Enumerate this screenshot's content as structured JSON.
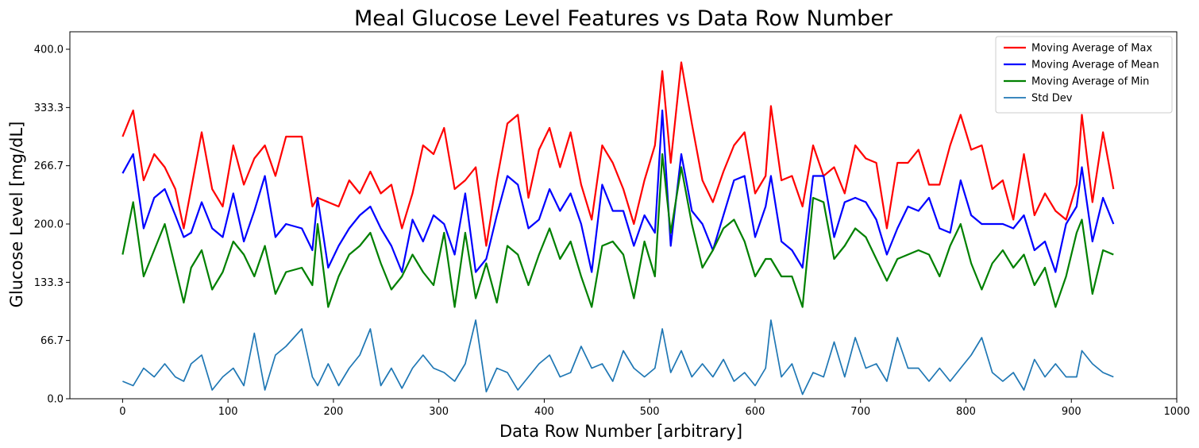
{
  "chart_data": {
    "type": "line",
    "title": "Meal Glucose Level Features vs Data Row Number",
    "xlabel": "Data Row Number [arbitrary]",
    "ylabel": "Glucose Level [mg/dL]",
    "xlim": [
      -50,
      1000
    ],
    "ylim": [
      0,
      420
    ],
    "xticks": [
      0,
      100,
      200,
      300,
      400,
      500,
      600,
      700,
      800,
      900,
      1000
    ],
    "xtick_labels": [
      "0",
      "100",
      "200",
      "300",
      "400",
      "500",
      "600",
      "700",
      "800",
      "900",
      "1000"
    ],
    "yticks": [
      0,
      66.7,
      133.3,
      200,
      266.7,
      333.3,
      400
    ],
    "ytick_labels": [
      "0.0",
      "66.7",
      "133.3",
      "200.0",
      "266.7",
      "333.3",
      "400.0"
    ],
    "grid": false,
    "legend_position": "top-right",
    "series": [
      {
        "name": "Moving Average of Max",
        "color": "#ff0000",
        "line_width": 2.2,
        "x": [
          0,
          10,
          20,
          30,
          40,
          50,
          58,
          65,
          75,
          85,
          95,
          105,
          115,
          125,
          135,
          145,
          155,
          170,
          180,
          185,
          195,
          205,
          215,
          225,
          235,
          245,
          255,
          265,
          275,
          285,
          295,
          305,
          315,
          325,
          335,
          345,
          355,
          365,
          375,
          385,
          395,
          405,
          415,
          425,
          435,
          445,
          455,
          465,
          475,
          485,
          495,
          505,
          512,
          520,
          530,
          540,
          550,
          560,
          570,
          580,
          590,
          600,
          610,
          615,
          625,
          635,
          645,
          655,
          665,
          675,
          685,
          695,
          705,
          715,
          725,
          735,
          745,
          755,
          765,
          775,
          785,
          795,
          805,
          815,
          825,
          835,
          845,
          855,
          865,
          875,
          885,
          895,
          905,
          910,
          920,
          930,
          940
        ],
        "values": [
          300,
          330,
          250,
          280,
          265,
          240,
          195,
          240,
          305,
          240,
          220,
          290,
          245,
          275,
          290,
          255,
          300,
          300,
          220,
          230,
          225,
          220,
          250,
          235,
          260,
          235,
          245,
          195,
          235,
          290,
          280,
          310,
          240,
          250,
          265,
          175,
          250,
          315,
          325,
          230,
          285,
          310,
          265,
          305,
          245,
          205,
          290,
          270,
          240,
          200,
          250,
          290,
          375,
          270,
          385,
          315,
          250,
          225,
          260,
          290,
          305,
          235,
          255,
          335,
          250,
          255,
          220,
          290,
          255,
          265,
          235,
          290,
          275,
          270,
          195,
          270,
          270,
          285,
          245,
          245,
          290,
          325,
          285,
          290,
          240,
          250,
          205,
          280,
          210,
          235,
          215,
          205,
          245,
          325,
          225,
          305,
          240
        ]
      },
      {
        "name": "Moving Average of Mean",
        "color": "#0000ff",
        "line_width": 2.2,
        "x": [
          0,
          10,
          20,
          30,
          40,
          50,
          58,
          65,
          75,
          85,
          95,
          105,
          115,
          125,
          135,
          145,
          155,
          170,
          180,
          185,
          195,
          205,
          215,
          225,
          235,
          245,
          255,
          265,
          275,
          285,
          295,
          305,
          315,
          325,
          335,
          345,
          355,
          365,
          375,
          385,
          395,
          405,
          415,
          425,
          435,
          445,
          455,
          465,
          475,
          485,
          495,
          505,
          512,
          520,
          530,
          540,
          550,
          560,
          570,
          580,
          590,
          600,
          610,
          615,
          625,
          635,
          645,
          655,
          665,
          675,
          685,
          695,
          705,
          715,
          725,
          735,
          745,
          755,
          765,
          775,
          785,
          795,
          805,
          815,
          825,
          835,
          845,
          855,
          865,
          875,
          885,
          895,
          905,
          910,
          920,
          930,
          940
        ],
        "values": [
          258,
          280,
          195,
          230,
          240,
          210,
          185,
          190,
          225,
          195,
          185,
          235,
          180,
          215,
          255,
          185,
          200,
          195,
          170,
          230,
          150,
          175,
          195,
          210,
          220,
          195,
          175,
          145,
          205,
          180,
          210,
          200,
          165,
          235,
          145,
          160,
          210,
          255,
          245,
          195,
          205,
          240,
          215,
          235,
          200,
          145,
          245,
          215,
          215,
          175,
          210,
          190,
          330,
          175,
          280,
          215,
          200,
          170,
          210,
          250,
          255,
          185,
          220,
          255,
          180,
          170,
          150,
          255,
          255,
          185,
          225,
          230,
          225,
          205,
          165,
          195,
          220,
          215,
          230,
          195,
          190,
          250,
          210,
          200,
          200,
          200,
          195,
          210,
          170,
          180,
          145,
          200,
          220,
          265,
          180,
          230,
          200
        ]
      },
      {
        "name": "Moving Average of Min",
        "color": "#008000",
        "line_width": 2.2,
        "x": [
          0,
          10,
          20,
          30,
          40,
          50,
          58,
          65,
          75,
          85,
          95,
          105,
          115,
          125,
          135,
          145,
          155,
          170,
          180,
          185,
          195,
          205,
          215,
          225,
          235,
          245,
          255,
          265,
          275,
          285,
          295,
          305,
          315,
          325,
          335,
          345,
          355,
          365,
          375,
          385,
          395,
          405,
          415,
          425,
          435,
          445,
          455,
          465,
          475,
          485,
          495,
          505,
          512,
          520,
          530,
          540,
          550,
          560,
          570,
          580,
          590,
          600,
          610,
          615,
          625,
          635,
          645,
          655,
          665,
          675,
          685,
          695,
          705,
          715,
          725,
          735,
          745,
          755,
          765,
          775,
          785,
          795,
          805,
          815,
          825,
          835,
          845,
          855,
          865,
          875,
          885,
          895,
          905,
          910,
          920,
          930,
          940
        ],
        "values": [
          165,
          225,
          140,
          170,
          200,
          150,
          110,
          150,
          170,
          125,
          145,
          180,
          165,
          140,
          175,
          120,
          145,
          150,
          130,
          200,
          105,
          140,
          165,
          175,
          190,
          155,
          125,
          140,
          165,
          145,
          130,
          190,
          105,
          190,
          115,
          155,
          110,
          175,
          165,
          130,
          165,
          195,
          160,
          180,
          140,
          105,
          175,
          180,
          165,
          115,
          180,
          140,
          280,
          190,
          265,
          200,
          150,
          170,
          195,
          205,
          180,
          140,
          160,
          160,
          140,
          140,
          105,
          230,
          225,
          160,
          175,
          195,
          185,
          160,
          135,
          160,
          165,
          170,
          165,
          140,
          175,
          200,
          155,
          125,
          155,
          170,
          150,
          165,
          130,
          150,
          105,
          140,
          190,
          205,
          120,
          170,
          165
        ]
      },
      {
        "name": "Std Dev",
        "color": "#1f77b4",
        "line_width": 1.7,
        "x": [
          0,
          10,
          20,
          30,
          40,
          50,
          58,
          65,
          75,
          85,
          95,
          105,
          115,
          125,
          135,
          145,
          155,
          170,
          180,
          185,
          195,
          205,
          215,
          225,
          235,
          245,
          255,
          265,
          275,
          285,
          295,
          305,
          315,
          325,
          335,
          345,
          355,
          365,
          375,
          385,
          395,
          405,
          415,
          425,
          435,
          445,
          455,
          465,
          475,
          485,
          495,
          505,
          512,
          520,
          530,
          540,
          550,
          560,
          570,
          580,
          590,
          600,
          610,
          615,
          625,
          635,
          645,
          655,
          665,
          675,
          685,
          695,
          705,
          715,
          725,
          735,
          745,
          755,
          765,
          775,
          785,
          795,
          805,
          815,
          825,
          835,
          845,
          855,
          865,
          875,
          885,
          895,
          905,
          910,
          920,
          930,
          940
        ],
        "values": [
          20,
          15,
          35,
          25,
          40,
          25,
          20,
          40,
          50,
          10,
          25,
          35,
          15,
          75,
          10,
          50,
          60,
          80,
          25,
          15,
          40,
          15,
          35,
          50,
          80,
          15,
          35,
          12,
          35,
          50,
          35,
          30,
          20,
          40,
          90,
          8,
          35,
          30,
          10,
          25,
          40,
          50,
          25,
          30,
          60,
          35,
          40,
          20,
          55,
          35,
          25,
          35,
          80,
          30,
          55,
          25,
          40,
          25,
          45,
          20,
          30,
          15,
          35,
          90,
          25,
          40,
          5,
          30,
          25,
          65,
          25,
          70,
          35,
          40,
          20,
          70,
          35,
          35,
          20,
          35,
          20,
          35,
          50,
          70,
          30,
          20,
          30,
          10,
          45,
          25,
          40,
          25,
          25,
          55,
          40,
          30,
          25
        ]
      }
    ]
  }
}
